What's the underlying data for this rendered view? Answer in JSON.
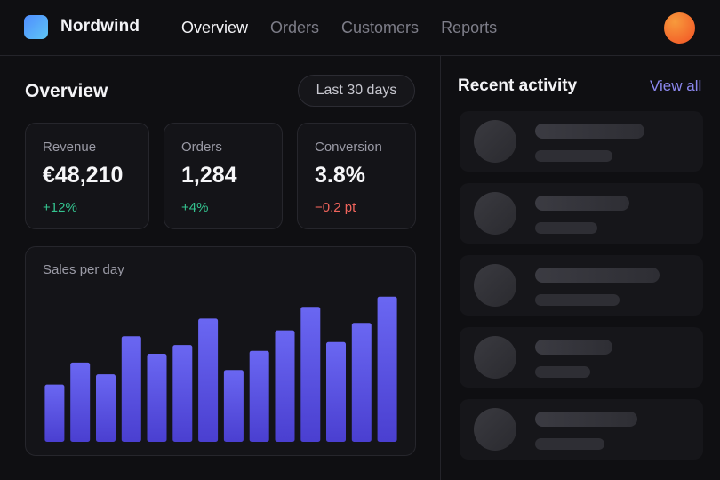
{
  "header": {
    "brand": "Nordwind",
    "nav": [
      {
        "label": "Overview",
        "active": true
      },
      {
        "label": "Orders",
        "active": false
      },
      {
        "label": "Customers",
        "active": false
      },
      {
        "label": "Reports",
        "active": false
      }
    ]
  },
  "overview": {
    "title": "Overview",
    "range": "Last 30 days",
    "kpis": [
      {
        "label": "Revenue",
        "value": "€48,210",
        "delta": "+12%",
        "trend": "up"
      },
      {
        "label": "Orders",
        "value": "1,284",
        "delta": "+4%",
        "trend": "up"
      },
      {
        "label": "Conversion",
        "value": "3.8%",
        "delta": "−0.2 pt",
        "trend": "down"
      }
    ]
  },
  "chart": {
    "title": "Sales per day"
  },
  "chart_data": {
    "type": "bar",
    "title": "Sales per day",
    "categories": [
      "",
      "",
      "",
      "",
      "",
      "",
      "",
      "",
      "",
      "",
      "",
      "",
      "",
      ""
    ],
    "values": [
      39,
      54,
      46,
      72,
      60,
      66,
      84,
      49,
      62,
      76,
      92,
      68,
      81,
      99
    ],
    "ylim": [
      0,
      100
    ],
    "grid": false,
    "colors": {
      "top": "#6a67f2",
      "bottom": "#4a3fd0"
    }
  },
  "activity": {
    "title": "Recent activity",
    "view_all": "View all",
    "items": [
      {
        "line1": 0.44,
        "line2": 0.31
      },
      {
        "line1": 0.38,
        "line2": 0.25
      },
      {
        "line1": 0.5,
        "line2": 0.34
      },
      {
        "line1": 0.31,
        "line2": 0.22
      },
      {
        "line1": 0.41,
        "line2": 0.28
      }
    ]
  },
  "colors": {
    "background": "#0f0f12",
    "accent": "#8b87ee",
    "positive": "#34c38f",
    "negative": "#f0645c"
  }
}
